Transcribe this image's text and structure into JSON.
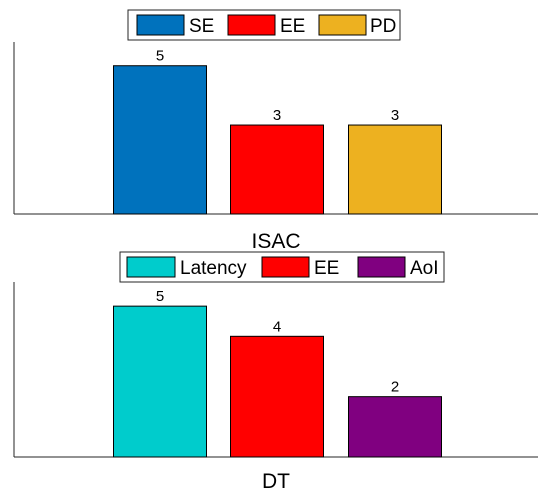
{
  "chart_data": [
    {
      "type": "bar",
      "categories": [
        "ISAC"
      ],
      "xlabel": "ISAC",
      "ylim": [
        0,
        5.8
      ],
      "legend": "top",
      "series": [
        {
          "name": "SE",
          "values": [
            5
          ],
          "color": "#0072BD"
        },
        {
          "name": "EE",
          "values": [
            3
          ],
          "color": "#FF0000"
        },
        {
          "name": "PD",
          "values": [
            3
          ],
          "color": "#EDB120"
        }
      ]
    },
    {
      "type": "bar",
      "categories": [
        "DT"
      ],
      "xlabel": "DT",
      "ylim": [
        0,
        5.8
      ],
      "legend": "top",
      "series": [
        {
          "name": "Latency",
          "values": [
            5
          ],
          "color": "#00CCCC"
        },
        {
          "name": "EE",
          "values": [
            4
          ],
          "color": "#FF0000"
        },
        {
          "name": "AoI",
          "values": [
            2
          ],
          "color": "#800080"
        }
      ]
    }
  ]
}
